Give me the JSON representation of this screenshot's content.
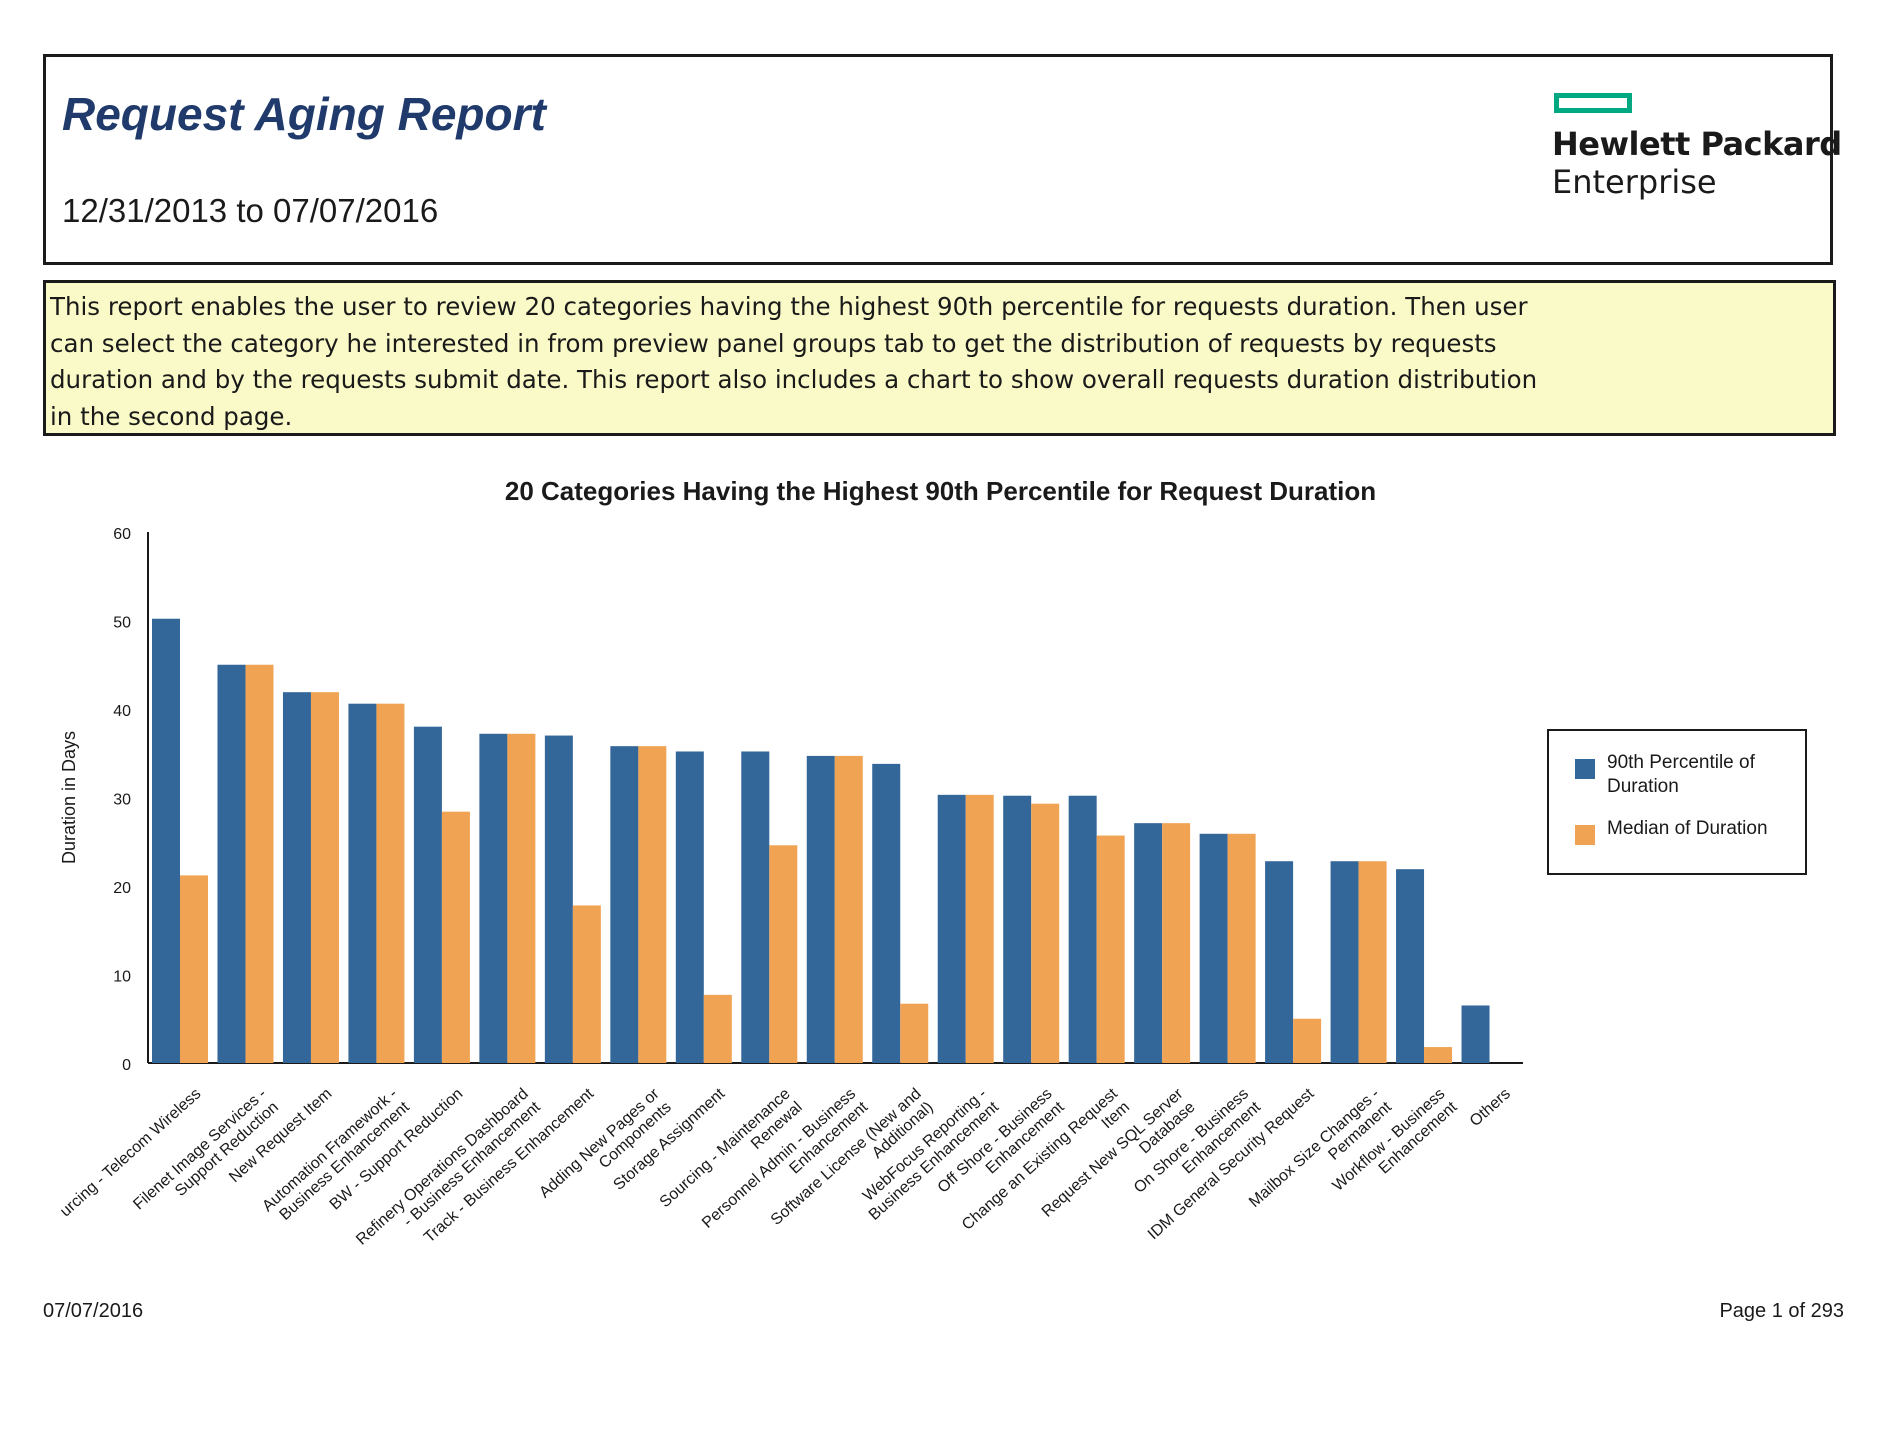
{
  "header": {
    "title": "Request Aging Report",
    "date_range": "12/31/2013 to 07/07/2016",
    "logo_line1": "Hewlett Packard",
    "logo_line2": "Enterprise"
  },
  "description": "This report enables the user to review 20 categories having the highest 90th percentile for requests duration. Then user can select the category he interested in from preview panel groups tab to get the distribution of requests by requests duration and by the requests submit date. This report also includes a chart to show overall requests duration distribution in the second page.",
  "colors": {
    "p90": "#336699",
    "median": "#f0a352",
    "accent_logo": "#01a982",
    "title": "#1f3a6b",
    "desc_bg": "#fafac8"
  },
  "chart_data": {
    "type": "bar",
    "title": "20 Categories Having the Highest 90th Percentile for Request Duration",
    "ylabel": "Duration in Days",
    "xlabel": "",
    "ylim": [
      0,
      60
    ],
    "yticks": [
      0,
      10,
      20,
      30,
      40,
      50,
      60
    ],
    "categories": [
      [
        "urcing - Telecom Wireless"
      ],
      [
        "Filenet Image Services -",
        "Support Reduction"
      ],
      [
        "New Request Item"
      ],
      [
        "Automation Framework -",
        "Business Enhancement"
      ],
      [
        "BW - Support Reduction"
      ],
      [
        "Refinery Operations Dashboard",
        "- Business Enhancement"
      ],
      [
        "Track - Business Enhancement"
      ],
      [
        "Adding New Pages or",
        "Components"
      ],
      [
        "Storage Assignment"
      ],
      [
        "Sourcing - Maintenance",
        "Renewal"
      ],
      [
        "Personnel Admin - Business",
        "Enhancement"
      ],
      [
        "Software License (New and",
        "Additional)"
      ],
      [
        "WebFocus Reporting -",
        "Business Enhancement"
      ],
      [
        "Off Shore - Business",
        "Enhancement"
      ],
      [
        "Change an Existing Request",
        "Item"
      ],
      [
        "Request New SQL Server",
        "Database"
      ],
      [
        "On Shore - Business",
        "Enhancement"
      ],
      [
        "IDM General Security Request"
      ],
      [
        "Mailbox Size Changes -",
        "Permanent"
      ],
      [
        "Workflow - Business",
        "Enhancement"
      ],
      [
        "Others"
      ]
    ],
    "series": [
      {
        "name": "90th Percentile of Duration",
        "values": [
          50.2,
          45.0,
          41.9,
          40.6,
          38.0,
          37.2,
          37.0,
          35.8,
          35.2,
          35.2,
          34.7,
          33.8,
          30.3,
          30.2,
          30.2,
          27.1,
          25.9,
          22.8,
          22.8,
          21.9,
          6.5
        ]
      },
      {
        "name": "Median of Duration",
        "values": [
          21.2,
          45.0,
          41.9,
          40.6,
          28.4,
          37.2,
          17.8,
          35.8,
          7.7,
          24.6,
          34.7,
          6.7,
          30.3,
          29.3,
          25.7,
          27.1,
          25.9,
          5.0,
          22.8,
          1.8,
          null
        ]
      }
    ],
    "legend": "right",
    "grid": false
  },
  "footer": {
    "date": "07/07/2016",
    "page": "Page 1 of 293"
  }
}
